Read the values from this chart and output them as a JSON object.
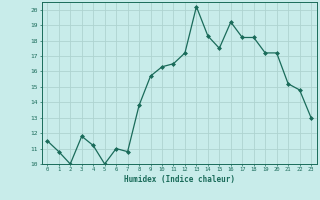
{
  "x": [
    0,
    1,
    2,
    3,
    4,
    5,
    6,
    7,
    8,
    9,
    10,
    11,
    12,
    13,
    14,
    15,
    16,
    17,
    18,
    19,
    20,
    21,
    22,
    23
  ],
  "y": [
    11.5,
    10.8,
    10.0,
    11.8,
    11.2,
    10.0,
    11.0,
    10.8,
    13.8,
    15.7,
    16.3,
    16.5,
    17.2,
    20.2,
    18.3,
    17.5,
    19.2,
    18.2,
    18.2,
    17.2,
    17.2,
    15.2,
    14.8,
    13.0
  ],
  "line_color": "#1a6b5a",
  "marker": "D",
  "marker_size": 2.0,
  "bg_color": "#c8ecea",
  "grid_color": "#aed4d0",
  "tick_label_color": "#1a6b5a",
  "xlabel": "Humidex (Indice chaleur)",
  "ylim": [
    10,
    20.5
  ],
  "xlim": [
    -0.5,
    23.5
  ],
  "yticks": [
    10,
    11,
    12,
    13,
    14,
    15,
    16,
    17,
    18,
    19,
    20
  ],
  "xticks": [
    0,
    1,
    2,
    3,
    4,
    5,
    6,
    7,
    8,
    9,
    10,
    11,
    12,
    13,
    14,
    15,
    16,
    17,
    18,
    19,
    20,
    21,
    22,
    23
  ],
  "axis_color": "#1a6b5a",
  "linewidth": 0.9
}
